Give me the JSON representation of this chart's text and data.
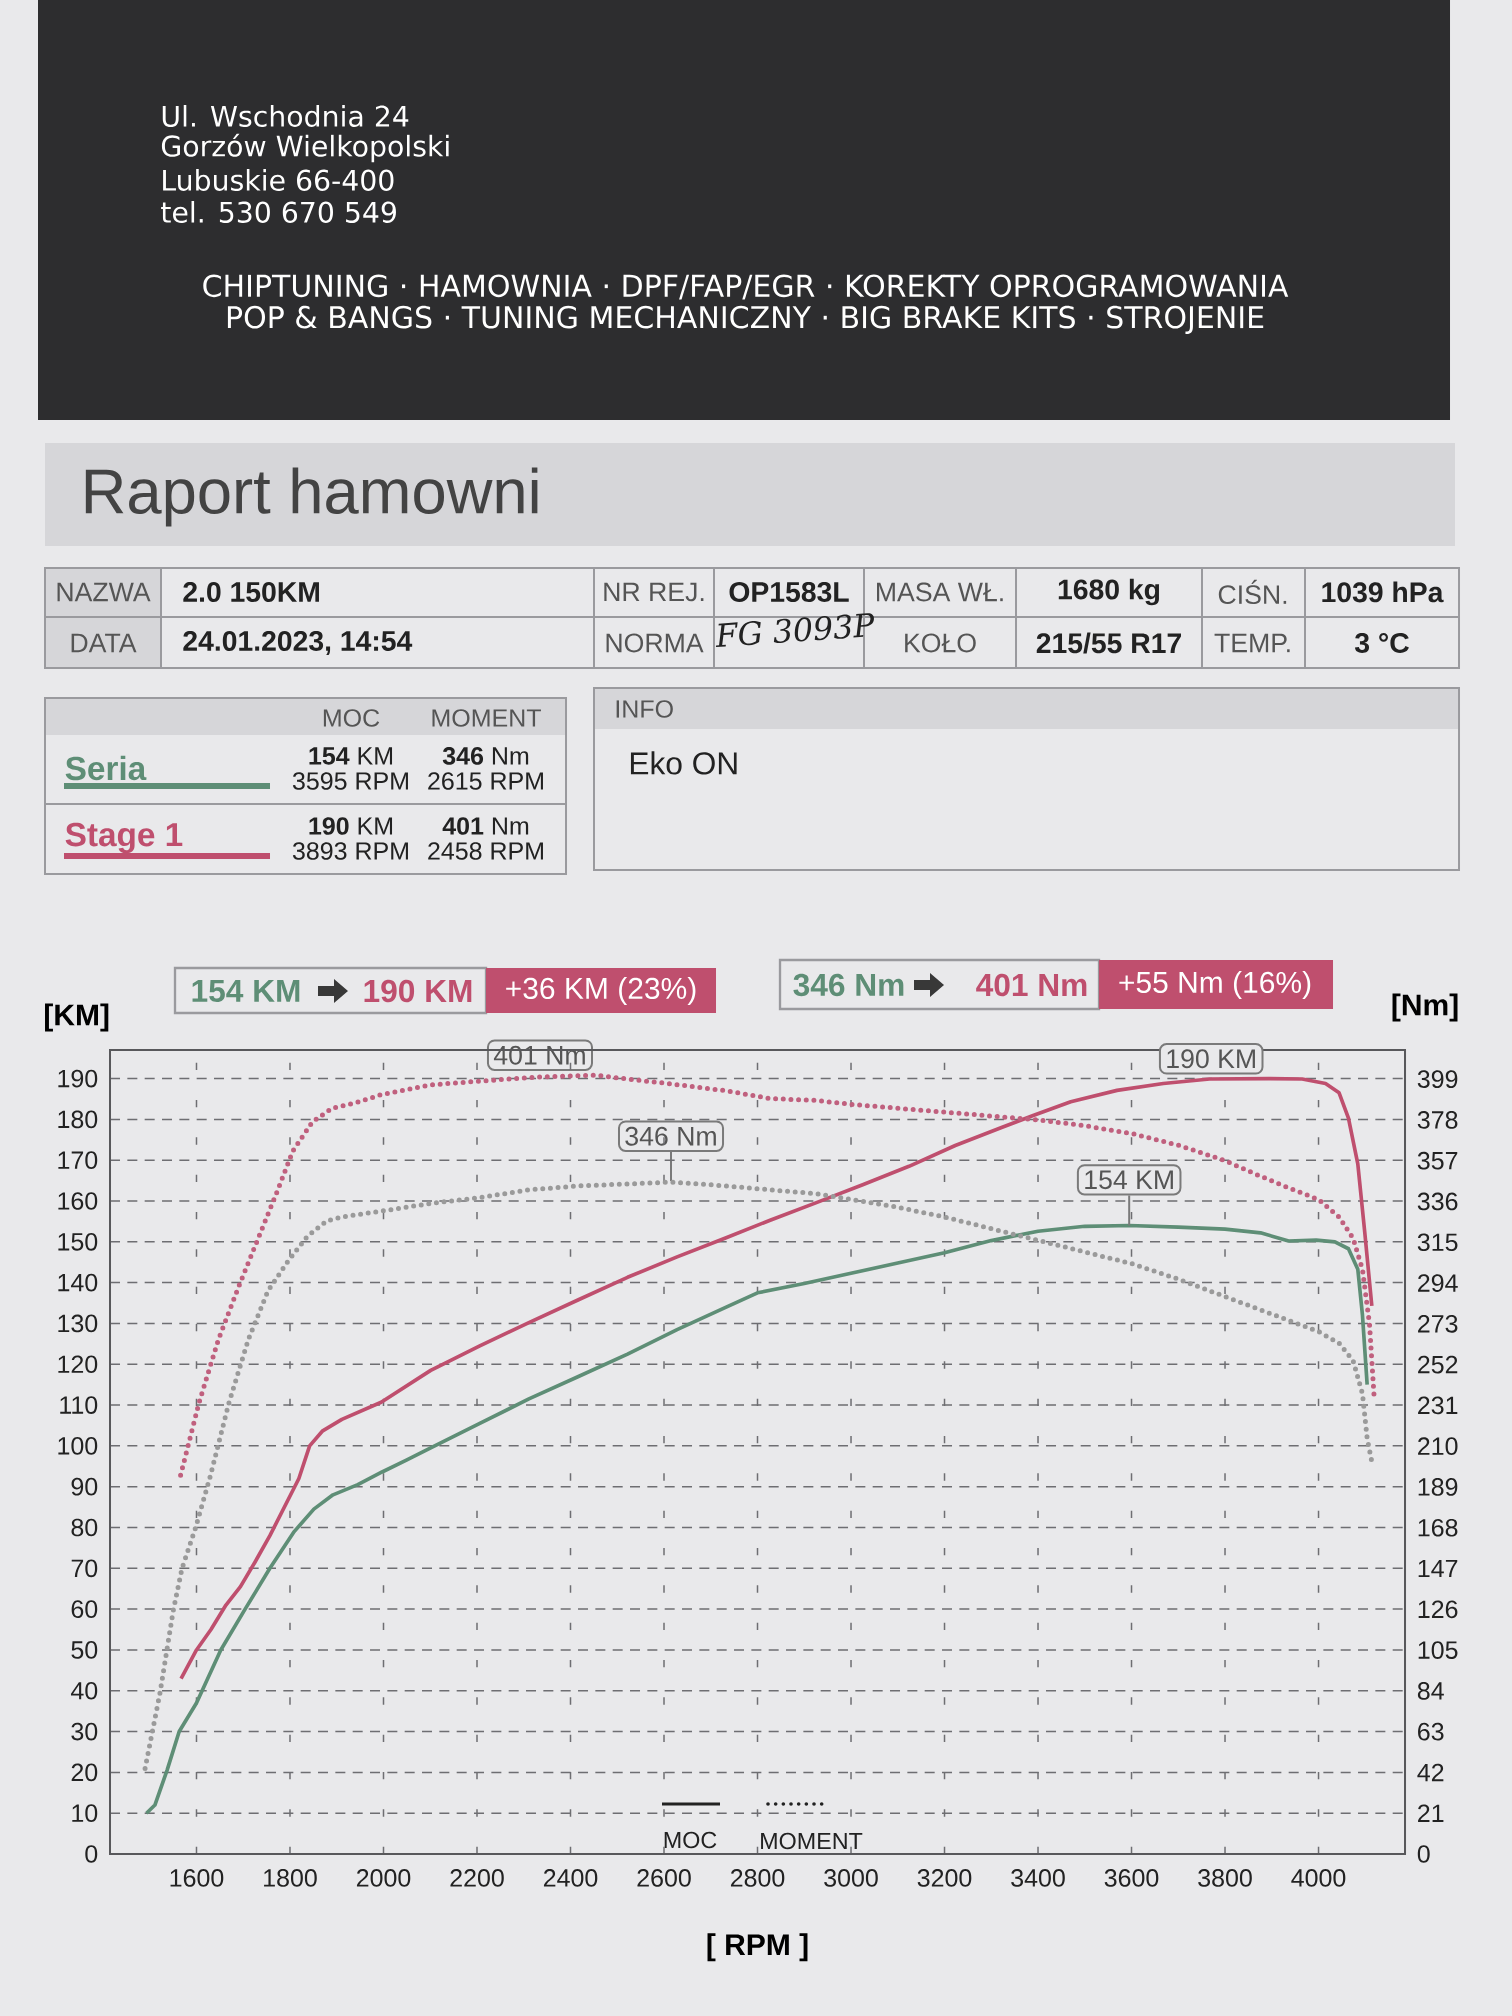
{
  "chart_data": {
    "type": "line",
    "title": "Raport hamowni",
    "xlabel": "[ RPM ]",
    "ylabel": "[KM]",
    "y2label": "[Nm]",
    "xlim": [
      1415,
      4185
    ],
    "xticks": [
      1600,
      1800,
      2000,
      2200,
      2400,
      2600,
      2800,
      3000,
      3200,
      3400,
      3600,
      3800,
      4000
    ],
    "ylim": [
      0,
      197
    ],
    "yticks": [
      0,
      10,
      20,
      30,
      40,
      50,
      60,
      70,
      80,
      90,
      100,
      110,
      120,
      130,
      140,
      150,
      160,
      170,
      180,
      190
    ],
    "y2lim": [
      0,
      414
    ],
    "y2ticks": [
      0,
      21,
      42,
      63,
      84,
      105,
      126,
      147,
      168,
      189,
      210,
      231,
      252,
      273,
      294,
      315,
      336,
      357,
      378,
      399
    ],
    "grid": true,
    "legend": "top left",
    "series": [
      {
        "name": "Seria",
        "color": "#5e8e76",
        "line_style": "solid",
        "x": [
          1493,
          1511,
          1537,
          1563,
          1600,
          1652,
          1704,
          1757,
          1809,
          1851,
          1892,
          1945,
          1997,
          2049,
          2101,
          2206,
          2311,
          2417,
          2522,
          2628,
          2733,
          2800,
          2900,
          3000,
          3100,
          3200,
          3300,
          3400,
          3500,
          3595,
          3700,
          3800,
          3876,
          3936,
          3995,
          4035,
          4064,
          4084,
          4094,
          4104
        ],
        "values": [
          10,
          12,
          20.5,
          30,
          37,
          50,
          60,
          70,
          79,
          84.5,
          88,
          90.5,
          93.6,
          96.5,
          99.5,
          105.5,
          111.5,
          117,
          122.5,
          128.5,
          134,
          137.5,
          139.8,
          142.3,
          144.8,
          147.3,
          150.3,
          152.6,
          153.8,
          154,
          153.6,
          153.1,
          152.2,
          150.2,
          150.4,
          150,
          148.3,
          143.3,
          132,
          115
        ]
      },
      {
        "name": "Stage 1",
        "color": "#bf4f6e",
        "line_style": "solid",
        "x": [
          1567,
          1600,
          1631,
          1663,
          1694,
          1725,
          1757,
          1788,
          1819,
          1842,
          1869,
          1911,
          1995,
          2101,
          2206,
          2311,
          2417,
          2522,
          2628,
          2733,
          2827,
          2926,
          3025,
          3124,
          3223,
          3322,
          3391,
          3470,
          3569,
          3668,
          3767,
          3893,
          3965,
          4015,
          4044,
          4064,
          4084,
          4099,
          4114
        ],
        "values": [
          43,
          50,
          55,
          61,
          65.5,
          71.5,
          78,
          85,
          92,
          100,
          103.6,
          106.5,
          110.7,
          118.5,
          124.5,
          130.2,
          135.8,
          141.3,
          146.3,
          151,
          155.3,
          159.6,
          164,
          168.5,
          173.6,
          178,
          181,
          184.3,
          187.1,
          188.8,
          189.9,
          190,
          189.9,
          188.8,
          186.5,
          180.3,
          169.1,
          152.2,
          134.3
        ]
      },
      {
        "color": "#9a9a9a",
        "line_style": "dotted",
        "axis": "y2",
        "x": [
          1490,
          1522,
          1550,
          1569,
          1598,
          1630,
          1669,
          1711,
          1753,
          1795,
          1837,
          1879,
          1911,
          1995,
          2101,
          2206,
          2311,
          2417,
          2522,
          2615,
          2733,
          2827,
          2926,
          3000,
          3100,
          3200,
          3300,
          3400,
          3500,
          3600,
          3700,
          3800,
          3900,
          4000,
          4044,
          4074,
          4094,
          4104,
          4114
        ],
        "values": [
          44,
          83,
          125,
          147,
          168,
          195,
          232,
          265,
          290,
          305,
          318,
          326,
          328,
          331,
          335,
          338,
          342,
          344,
          345,
          346,
          344,
          342,
          340,
          337,
          333,
          328,
          322,
          316,
          310,
          304,
          296,
          287,
          278,
          269,
          263,
          254,
          237,
          214,
          202
        ]
      },
      {
        "color": "#c0607e",
        "line_style": "dotted",
        "axis": "y2",
        "x": [
          1566,
          1605,
          1647,
          1690,
          1732,
          1774,
          1806,
          1848,
          1890,
          1943,
          1995,
          2101,
          2206,
          2330,
          2458,
          2522,
          2600,
          2733,
          2827,
          2926,
          3000,
          3100,
          3200,
          3300,
          3400,
          3500,
          3600,
          3700,
          3800,
          3866,
          3936,
          4000,
          4044,
          4074,
          4094,
          4109,
          4119
        ],
        "values": [
          195,
          232,
          265,
          292,
          317,
          342,
          362,
          377,
          384,
          387,
          391,
          396,
          398,
          400,
          401,
          399,
          397,
          393,
          389,
          388,
          386,
          384,
          382,
          380,
          378,
          375,
          371,
          365,
          357,
          350,
          343,
          337,
          328,
          317,
          301,
          273,
          235
        ]
      }
    ],
    "annotations": [
      "Ul. Wschodnia 24",
      "Gorzów Wielkopolski",
      "Lubuskie 66-400",
      "tel. 530 670 549",
      "CHIPTUNING · HAMOWNIA · DPF/FAP/EGR · KOREKTY OPROGRAMOWANIA",
      "POP & BANGS · TUNING MECHANICZNY · BIG BRAKE KITS · STROJENIE",
      "NAZWA",
      "2.0 150KM",
      "NR REJ.",
      "OP1583L",
      "MASA WŁ.",
      "1680 kg",
      "CIŚN.",
      "1039 hPa",
      "DATA",
      "24.01.2023, 14:54",
      "NORMA",
      "FG 3093P",
      "KOŁO",
      "215/55 R17",
      "TEMP.",
      "3 °C",
      "MOC",
      "MOMENT",
      "**154** KM",
      "3595 RPM",
      "**346** Nm",
      "2615 RPM",
      "**190** KM",
      "3893 RPM",
      "**401** Nm",
      "2458 RPM",
      "INFO",
      "Eko ON",
      "154 KM",
      "190 KM",
      "+36 KM  (23%)",
      "346 Nm",
      "401 Nm",
      "+55 Nm  (16%)",
      "401 Nm",
      "346 Nm",
      {
        "text": "154 KM",
        "x": 3595,
        "y": 154
      },
      {
        "text": "190 KM",
        "x": 3893,
        "y": 190
      },
      "MOC",
      "MOMENT"
    ]
  }
}
